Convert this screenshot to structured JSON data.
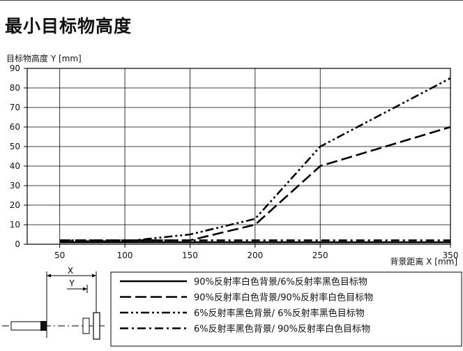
{
  "page": {
    "title": "最小目标物高度"
  },
  "chart_data": {
    "type": "line",
    "ylabel": "目标物高度 Y [mm]",
    "xlabel": "背景距离 X [mm]",
    "xlim": [
      25,
      350
    ],
    "ylim": [
      0,
      90
    ],
    "xticks": [
      50,
      100,
      150,
      200,
      250,
      350
    ],
    "yticks": [
      0,
      10,
      20,
      30,
      40,
      50,
      60,
      70,
      80,
      90
    ],
    "xticks_labeled": [
      50,
      100,
      150,
      200,
      250,
      350
    ],
    "grid": true,
    "series": [
      {
        "name": "90%反射率白色背景/6%反射率黑色目标物",
        "style": "solid",
        "x": [
          50,
          350
        ],
        "y": [
          1,
          1
        ]
      },
      {
        "name": "90%反射率白色背景/90%反射率白色目标物",
        "style": "long-dash",
        "x": [
          50,
          150,
          200,
          250,
          350
        ],
        "y": [
          2,
          2,
          10,
          40,
          60
        ]
      },
      {
        "name": "6%反射率黑色背景/ 6%反射率黑色目标物",
        "style": "dash-dot-dot",
        "x": [
          50,
          100,
          150,
          200,
          250,
          350
        ],
        "y": [
          1.5,
          1.5,
          5,
          13,
          50,
          85
        ]
      },
      {
        "name": "6%反射率黑色背景/ 90%反射率白色目标物",
        "style": "dash-dot",
        "x": [
          50,
          350
        ],
        "y": [
          2,
          2
        ]
      }
    ]
  },
  "diagram": {
    "x_label": "X",
    "y_label": "Y"
  }
}
